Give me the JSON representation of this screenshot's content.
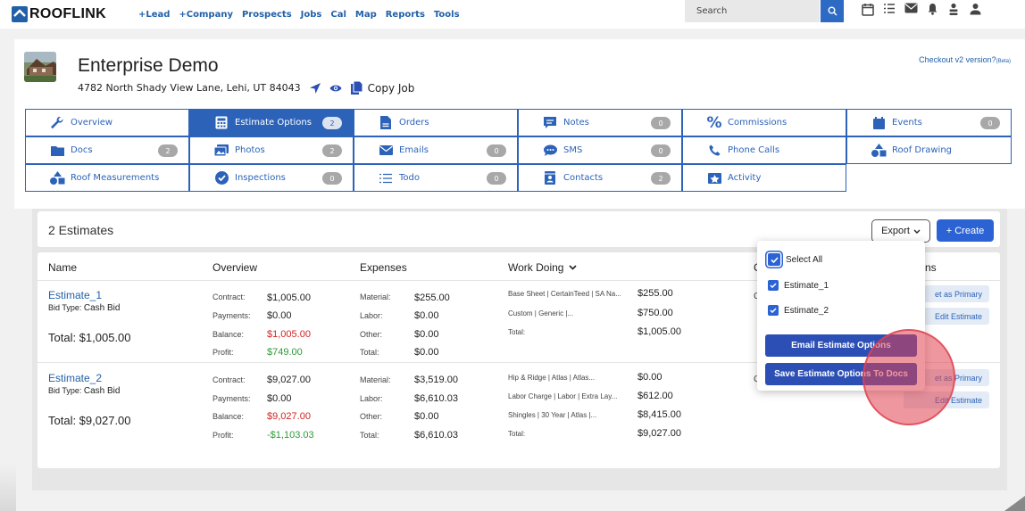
{
  "topnav": {
    "logo": "ROOFLINK",
    "links": [
      "+Lead",
      "+Company",
      "Prospects",
      "Jobs",
      "Cal",
      "Map",
      "Reports",
      "Tools"
    ],
    "search_placeholder": "Search",
    "icons": [
      "calendar-icon",
      "list-icon",
      "mail-icon",
      "bell-icon",
      "users-icon",
      "user-icon"
    ]
  },
  "job": {
    "title": "Enterprise Demo",
    "address": "4782 North Shady View Lane, Lehi, UT 84043",
    "copy_label": "Copy Job",
    "checkout_text": "Checkout v2 version?",
    "checkout_beta": "(Beta)"
  },
  "tabs": [
    {
      "label": "Overview",
      "icon": "wrench-icon",
      "badge": null,
      "active": false
    },
    {
      "label": "Estimate Options",
      "icon": "calculator-icon",
      "badge": "2",
      "active": true
    },
    {
      "label": "Orders",
      "icon": "document-icon",
      "badge": null,
      "active": false
    },
    {
      "label": "Notes",
      "icon": "note-icon",
      "badge": "0",
      "active": false
    },
    {
      "label": "Commissions",
      "icon": "percent-icon",
      "badge": null,
      "active": false
    },
    {
      "label": "Events",
      "icon": "calendar-icon",
      "badge": "0",
      "active": false
    },
    {
      "label": "Docs",
      "icon": "folder-icon",
      "badge": "2",
      "active": false
    },
    {
      "label": "Photos",
      "icon": "image-icon",
      "badge": "2",
      "active": false
    },
    {
      "label": "Emails",
      "icon": "envelope-icon",
      "badge": "0",
      "active": false
    },
    {
      "label": "SMS",
      "icon": "chat-icon",
      "badge": "0",
      "active": false
    },
    {
      "label": "Phone Calls",
      "icon": "phone-icon",
      "badge": null,
      "active": false
    },
    {
      "label": "Roof Drawing",
      "icon": "shapes-icon",
      "badge": null,
      "active": false
    },
    {
      "label": "Roof Measurements",
      "icon": "shapes-icon",
      "badge": null,
      "active": false
    },
    {
      "label": "Inspections",
      "icon": "check-circle-icon",
      "badge": "0",
      "active": false
    },
    {
      "label": "Todo",
      "icon": "list-icon",
      "badge": "0",
      "active": false
    },
    {
      "label": "Contacts",
      "icon": "contact-icon",
      "badge": "2",
      "active": false
    },
    {
      "label": "Activity",
      "icon": "activity-icon",
      "badge": null,
      "active": false
    }
  ],
  "estimates_panel": {
    "count_label": "2 Estimates",
    "export_label": "Export",
    "create_label": "+ Create",
    "headers": {
      "name": "Name",
      "overview": "Overview",
      "expenses": "Expenses",
      "work_doing": "Work Doing",
      "col_c": "C",
      "col_ns": "ns"
    },
    "overview_labels": {
      "contract": "Contract:",
      "payments": "Payments:",
      "balance": "Balance:",
      "profit": "Profit:"
    },
    "expense_labels": {
      "material": "Material:",
      "labor": "Labor:",
      "other": "Other:",
      "total": "Total:"
    },
    "rows": [
      {
        "name": "Estimate_1",
        "bid_type_label": "Bid Type:",
        "bid_type": "Cash Bid",
        "total": "Total:  $1,005.00",
        "contract": "$1,005.00",
        "payments": "$0.00",
        "balance": "$1,005.00",
        "profit": "$749.00",
        "material": "$255.00",
        "labor": "$0.00",
        "other": "$0.00",
        "expense_total": "$0.00",
        "work": [
          {
            "desc": "Base Sheet | CertainTeed | SA Na...",
            "amount": "$255.00"
          },
          {
            "desc": "Custom | Generic |...",
            "amount": "$750.00"
          },
          {
            "desc": "Total:",
            "amount": "$1,005.00"
          }
        ],
        "col_c": "C",
        "set_primary": "et as Primary",
        "edit": "Edit Estimate"
      },
      {
        "name": "Estimate_2",
        "bid_type_label": "Bid Type:",
        "bid_type": "Cash Bid",
        "total": "Total:  $9,027.00",
        "contract": "$9,027.00",
        "payments": "$0.00",
        "balance": "$9,027.00",
        "profit": "-$1,103.03",
        "material": "$3,519.00",
        "labor": "$6,610.03",
        "other": "$0.00",
        "expense_total": "$6,610.03",
        "work": [
          {
            "desc": "Hip & Ridge | Atlas | Atlas...",
            "amount": "$0.00"
          },
          {
            "desc": "Labor Charge | Labor | Extra Lay...",
            "amount": "$612.00"
          },
          {
            "desc": "Shingles | 30 Year | Atlas |...",
            "amount": "$8,415.00"
          },
          {
            "desc": "Total:",
            "amount": "$9,027.00"
          }
        ],
        "col_c": "C",
        "set_primary": "et as Primary",
        "edit": "Edit Estimate"
      }
    ]
  },
  "export_dropdown": {
    "select_all": "Select All",
    "options": [
      "Estimate_1",
      "Estimate_2"
    ],
    "email_button": "Email Estimate Options",
    "save_button": "Save Estimate Options To Docs"
  },
  "colors": {
    "brand": "#2160a8",
    "tab_border": "#2c63b8",
    "primary_button": "#2c63d4",
    "negative": "#d0241f",
    "positive": "#2f9a36"
  }
}
